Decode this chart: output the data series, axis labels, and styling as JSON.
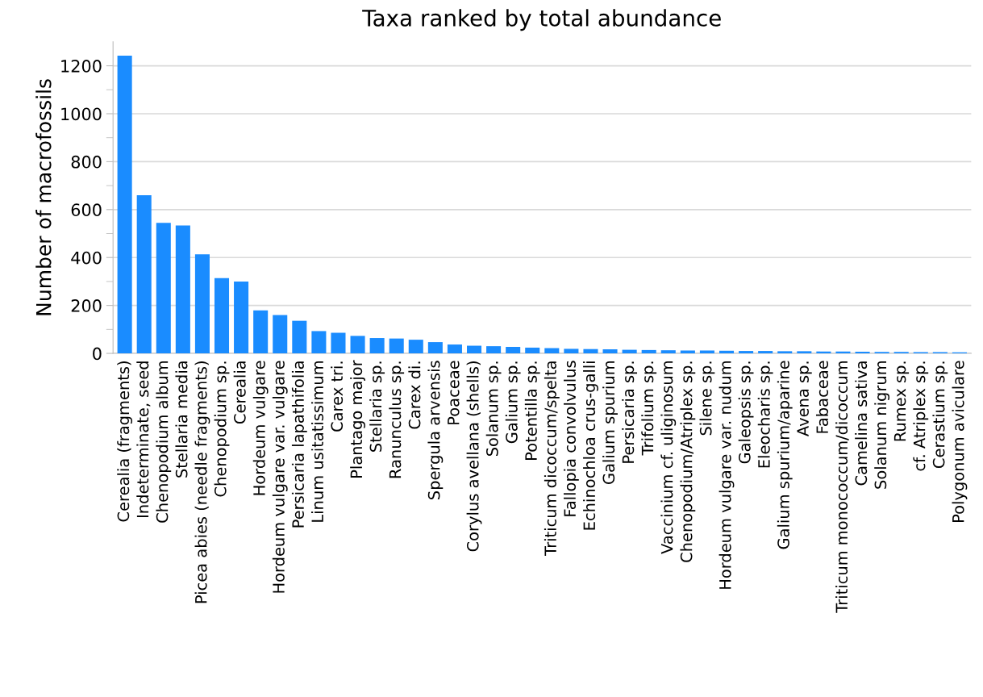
{
  "chart_data": {
    "type": "bar",
    "title": "Taxa ranked by total abundance",
    "ylabel": "Number of macrofossils",
    "categories": [
      "Cerealia (fragments)",
      "Indeterminate, seed",
      "Chenopodium album",
      "Stellaria media",
      "Picea abies (needle fragments)",
      "Chenopodium sp.",
      "Cerealia",
      "Hordeum vulgare",
      "Hordeum vulgare var. vulgare",
      "Persicaria lapathifolia",
      "Linum usitatissimum",
      "Carex tri.",
      "Plantago major",
      "Stellaria sp.",
      "Ranunculus sp.",
      "Carex di.",
      "Spergula arvensis",
      "Poaceae",
      "Corylus avellana (shells)",
      "Solanum sp.",
      "Galium sp.",
      "Potentilla sp.",
      "Triticum dicoccum/spelta",
      "Fallopia convolvulus",
      "Echinochloa crus-galli",
      "Galium spurium",
      "Persicaria sp.",
      "Trifolium sp.",
      "Vaccinium cf. uliginosum",
      "Chenopodium/Atriplex sp.",
      "Silene sp.",
      "Hordeum vulgare var. nudum",
      "Galeopsis sp.",
      "Eleocharis sp.",
      "Galium spurium/aparine",
      "Avena sp.",
      "Fabaceae",
      "Triticum monococcum/dicoccum",
      "Camelina sativa",
      "Solanum nigrum",
      "Rumex sp.",
      "cf. Atriplex sp.",
      "Cerastium sp.",
      "Polygonum aviculare"
    ],
    "values": [
      1242,
      660,
      545,
      534,
      413,
      314,
      300,
      179,
      160,
      136,
      93,
      86,
      73,
      64,
      62,
      57,
      47,
      37,
      32,
      30,
      27,
      24,
      22,
      19,
      18,
      17,
      15,
      14,
      13,
      12,
      12,
      11,
      10,
      10,
      9,
      9,
      8,
      8,
      7,
      6,
      6,
      5,
      5,
      4
    ],
    "color": "#1a8cff",
    "ylim": [
      0,
      1300
    ],
    "yticks": [
      0,
      {
        "value": 100,
        "label": null
      },
      200,
      {
        "value": 300,
        "label": null
      },
      400,
      {
        "value": 500,
        "label": null
      },
      600,
      {
        "value": 700,
        "label": null
      },
      800,
      {
        "value": 900,
        "label": null
      },
      1000,
      {
        "value": 1100,
        "label": null
      },
      1200
    ],
    "grid": "y"
  }
}
